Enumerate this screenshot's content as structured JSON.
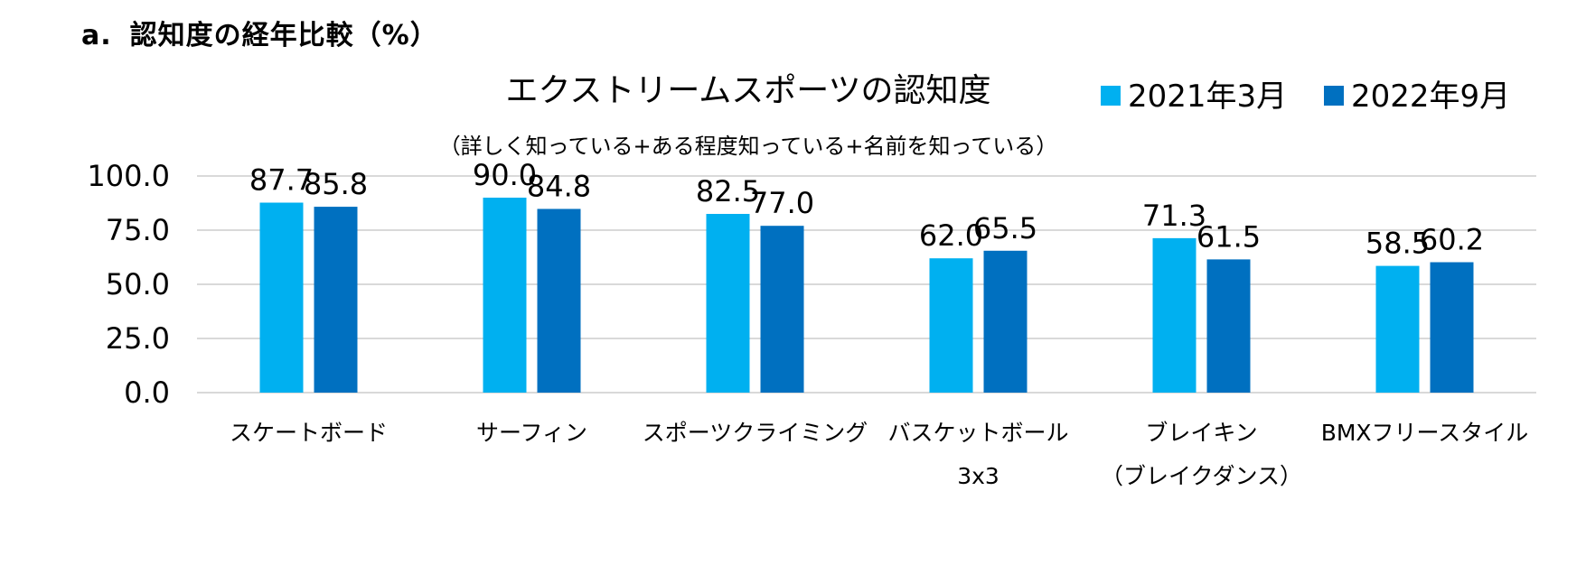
{
  "heading": {
    "label": "a.",
    "text": "認知度の経年比較（%）"
  },
  "chart_data": {
    "type": "bar",
    "title": "エクストリームスポーツの認知度",
    "subtitle": "（詳しく知っている+ある程度知っている+名前を知っている）",
    "categories": [
      [
        "スケートボード"
      ],
      [
        "サーフィン"
      ],
      [
        "スポーツクライミング"
      ],
      [
        "バスケットボール",
        "3x3"
      ],
      [
        "ブレイキン",
        "（ブレイクダンス）"
      ],
      [
        "BMXフリースタイル"
      ]
    ],
    "series": [
      {
        "name": "2021年3月",
        "color": "#00B0F0",
        "values": [
          87.7,
          90.0,
          82.5,
          62.0,
          71.3,
          58.5
        ]
      },
      {
        "name": "2022年9月",
        "color": "#0070C0",
        "values": [
          85.8,
          84.8,
          77.0,
          65.5,
          61.5,
          60.2
        ]
      }
    ],
    "yticks": [
      "100.0",
      "75.0",
      "50.0",
      "25.0",
      "0.0"
    ],
    "ylim": [
      0,
      100
    ],
    "xlabel": "",
    "ylabel": "",
    "grid": true,
    "legend": "top-right",
    "gridColor": "#D9D9D9"
  }
}
